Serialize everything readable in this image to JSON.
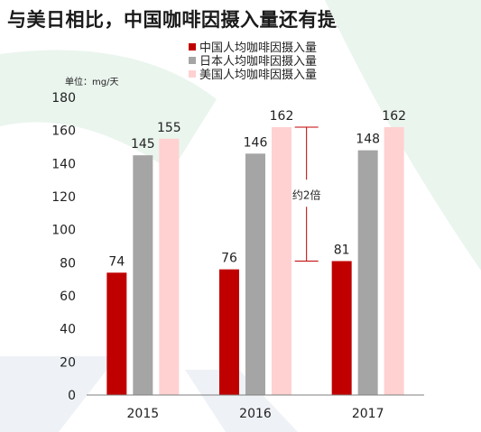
{
  "title": "与美日相比，中国咖啡因摄入量还有提升空间",
  "chart_data": {
    "type": "bar",
    "unit_label": "单位：mg/天",
    "categories": [
      "2015",
      "2016",
      "2017"
    ],
    "series": [
      {
        "name": "中国人均咖啡因摄入量",
        "values": [
          74,
          76,
          81
        ],
        "color": "#c00000"
      },
      {
        "name": "日本人均咖啡因摄入量",
        "values": [
          145,
          146,
          148
        ],
        "color": "#a5a5a5"
      },
      {
        "name": "美国人均咖啡因摄入量",
        "values": [
          155,
          162,
          162
        ],
        "color": "#ffd1d1"
      }
    ],
    "ylim": [
      0,
      180
    ],
    "yticks": [
      0,
      20,
      40,
      60,
      80,
      100,
      120,
      140,
      160,
      180
    ],
    "grid": false,
    "legend_position": "top-center",
    "annotation": {
      "text": "约2倍",
      "from_value": 162,
      "to_value": 81
    }
  },
  "background_watermark": {
    "colors": [
      "#eaf5ee",
      "#eef2f6"
    ]
  }
}
